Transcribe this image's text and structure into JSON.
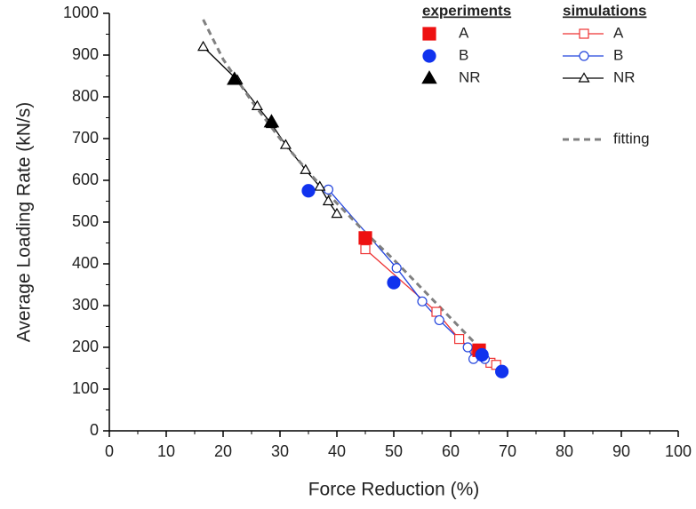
{
  "chart_data": {
    "type": "scatter",
    "xlabel": "Force Reduction (%)",
    "ylabel": "Average Loading Rate (kN/s)",
    "xlim": [
      0,
      100
    ],
    "xticks": [
      0,
      10,
      20,
      30,
      40,
      50,
      60,
      70,
      80,
      90,
      100
    ],
    "ylim": [
      0,
      1000
    ],
    "yticks": [
      0,
      100,
      200,
      300,
      400,
      500,
      600,
      700,
      800,
      900,
      1000
    ],
    "groups": [
      {
        "title": "experiments",
        "series": [
          {
            "name": "A",
            "color": "#ee1111",
            "marker": "square",
            "filled": true,
            "line": false,
            "dashed": false,
            "x": [
              45,
              65
            ],
            "values": [
              462,
              193
            ]
          },
          {
            "name": "B",
            "color": "#1133ee",
            "marker": "circle",
            "filled": true,
            "line": false,
            "dashed": false,
            "x": [
              35,
              50,
              65.5,
              69
            ],
            "values": [
              575,
              355,
              182,
              142
            ]
          },
          {
            "name": "NR",
            "color": "#000000",
            "marker": "triangle",
            "filled": true,
            "line": false,
            "dashed": false,
            "x": [
              22,
              28.5
            ],
            "values": [
              842,
              740
            ]
          }
        ]
      },
      {
        "title": "simulations",
        "series": [
          {
            "name": "A",
            "color": "#ee3333",
            "marker": "square",
            "filled": false,
            "line": true,
            "dashed": false,
            "x": [
              45,
              57.5,
              61.5,
              64.5,
              67,
              68
            ],
            "values": [
              435,
              285,
              220,
              185,
              163,
              158
            ]
          },
          {
            "name": "B",
            "color": "#2244dd",
            "marker": "circle",
            "filled": false,
            "line": true,
            "dashed": false,
            "x": [
              38.5,
              50.5,
              55,
              58,
              63,
              64,
              66
            ],
            "values": [
              578,
              390,
              310,
              265,
              200,
              172,
              172
            ]
          },
          {
            "name": "NR",
            "color": "#000000",
            "marker": "triangle",
            "filled": false,
            "line": true,
            "dashed": false,
            "x": [
              16.5,
              22.5,
              26,
              28.5,
              31,
              34.5,
              37,
              38.5,
              40
            ],
            "values": [
              920,
              840,
              778,
              735,
              685,
              625,
              585,
              550,
              520
            ]
          },
          {
            "name": "fitting",
            "color": "#808080",
            "marker": null,
            "filled": false,
            "line": true,
            "dashed": true,
            "x": [
              16.5,
              20,
              25,
              30,
              35,
              40,
              45,
              50,
              55,
              60,
              65,
              69
            ],
            "values": [
              985,
              890,
              790,
              700,
              620,
              545,
              475,
              410,
              340,
              270,
              200,
              140
            ]
          }
        ]
      }
    ]
  }
}
